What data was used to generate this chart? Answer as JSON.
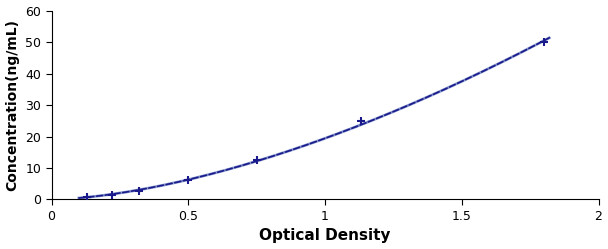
{
  "x_points": [
    0.13,
    0.22,
    0.32,
    0.5,
    0.75,
    1.13,
    1.8
  ],
  "y_points": [
    0.8,
    1.5,
    2.8,
    6.25,
    12.5,
    25.0,
    50.0
  ],
  "line_color": "#1a1a8c",
  "marker_color": "#1a1a8c",
  "marker_style": "+",
  "marker_size": 6,
  "marker_linewidth": 1.5,
  "line_width": 1.2,
  "xlabel": "Optical Density",
  "ylabel": "Concentration(ng/mL)",
  "xlim": [
    0,
    2
  ],
  "ylim": [
    0,
    60
  ],
  "xticks": [
    0,
    0.5,
    1,
    1.5,
    2
  ],
  "yticks": [
    0,
    10,
    20,
    30,
    40,
    50,
    60
  ],
  "xlabel_fontsize": 11,
  "ylabel_fontsize": 10,
  "tick_fontsize": 9,
  "background_color": "#ffffff",
  "curve_color": "#8899cc"
}
